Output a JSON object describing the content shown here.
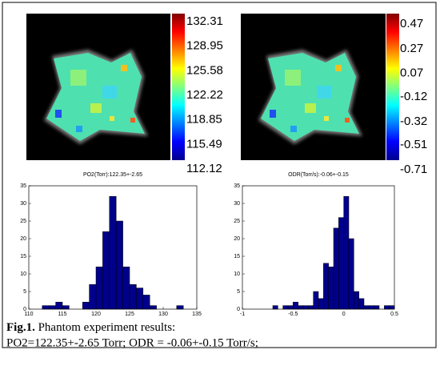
{
  "chart_data": [
    {
      "type": "image",
      "clim": [
        112.12,
        132.31
      ],
      "cticks": [
        132.31,
        128.95,
        125.58,
        122.22,
        118.85,
        115.49,
        112.12
      ]
    },
    {
      "type": "image",
      "clim": [
        -0.71,
        0.47
      ],
      "cticks": [
        0.47,
        0.27,
        0.07,
        -0.12,
        -0.32,
        -0.51,
        -0.71
      ]
    },
    {
      "type": "histogram",
      "title": "PO2(Torr):122.35+-2.65",
      "color": "#00008b",
      "bins": [
        112,
        113,
        114,
        115,
        116,
        117,
        118,
        119,
        120,
        121,
        122,
        123,
        124,
        125,
        126,
        127,
        128,
        129,
        130,
        131,
        132,
        133
      ],
      "values": [
        1,
        1,
        2,
        1,
        0,
        0,
        2,
        7,
        12,
        22,
        32,
        25,
        12,
        7,
        6,
        4,
        1,
        0,
        0,
        0,
        1
      ],
      "xlim": [
        110,
        135
      ],
      "xticks": [
        110,
        115,
        120,
        125,
        130,
        135
      ],
      "ylim": [
        0,
        35
      ],
      "yticks": [
        0,
        5,
        10,
        15,
        20,
        25,
        30,
        35
      ]
    },
    {
      "type": "histogram",
      "title": "ODR(Torr/s):-0.06+-0.15",
      "color": "#00008b",
      "bins": [
        -0.75,
        -0.7,
        -0.65,
        -0.6,
        -0.55,
        -0.5,
        -0.45,
        -0.4,
        -0.35,
        -0.3,
        -0.25,
        -0.2,
        -0.15,
        -0.1,
        -0.05,
        0,
        0.05,
        0.1,
        0.15,
        0.2,
        0.25,
        0.3,
        0.35,
        0.4,
        0.45,
        0.5
      ],
      "values": [
        0,
        1,
        0,
        1,
        1,
        2,
        1,
        1,
        1,
        5,
        3,
        13,
        12,
        23,
        26,
        32,
        20,
        5,
        3,
        1,
        1,
        1,
        0,
        1,
        1
      ],
      "xlim": [
        -1,
        0.5
      ],
      "xticks": [
        -1,
        -0.5,
        0,
        0.5
      ],
      "ylim": [
        0,
        35
      ],
      "yticks": [
        0,
        5,
        10,
        15,
        20,
        25,
        30,
        35
      ]
    }
  ],
  "caption": {
    "label": "Fig.1.",
    "text": " Phantom experiment results:",
    "line2": "PO2=122.35+-2.65 Torr; ODR = -0.06+-0.15 Torr/s;"
  }
}
